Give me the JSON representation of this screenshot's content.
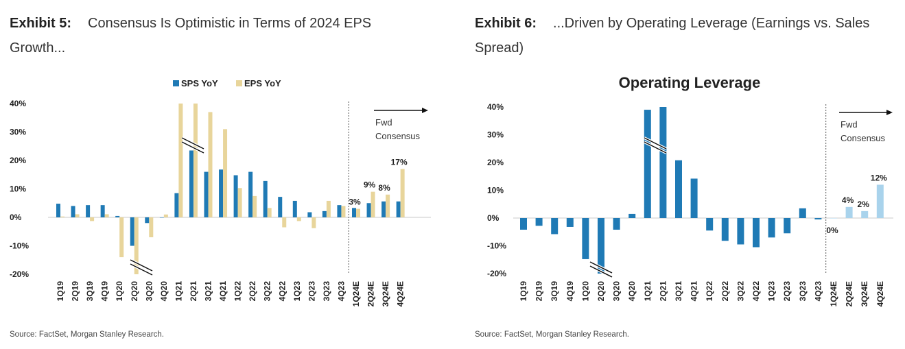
{
  "exhibit5": {
    "label": "Exhibit 5:",
    "title": "Consensus Is Optimistic in Terms of 2024 EPS Growth...",
    "source": "Source: FactSet, Morgan Stanley Research."
  },
  "exhibit6": {
    "label": "Exhibit 6:",
    "title": "...Driven by Operating Leverage (Earnings vs. Sales Spread)",
    "source": "Source: FactSet, Morgan Stanley Research."
  },
  "colors": {
    "sps": "#1f7ab5",
    "eps": "#e8d59b",
    "forecast": "#a9d3ec"
  },
  "chart_data": [
    {
      "type": "bar",
      "title": "",
      "categories": [
        "1Q19",
        "2Q19",
        "3Q19",
        "4Q19",
        "1Q20",
        "2Q20",
        "3Q20",
        "4Q20",
        "1Q21",
        "2Q21",
        "3Q21",
        "4Q21",
        "1Q22",
        "2Q22",
        "3Q22",
        "4Q22",
        "1Q23",
        "2Q23",
        "3Q23",
        "4Q23",
        "1Q24E",
        "2Q24E",
        "3Q24E",
        "4Q24E"
      ],
      "series": [
        {
          "name": "SPS YoY",
          "values": [
            4.8,
            4.0,
            4.3,
            4.3,
            0.5,
            -10.0,
            -2.0,
            0.0,
            8.5,
            23.5,
            16.0,
            16.8,
            14.8,
            16.0,
            12.8,
            7.2,
            5.8,
            1.8,
            2.2,
            4.3,
            3.3,
            5.0,
            5.6,
            5.6
          ]
        },
        {
          "name": "EPS YoY",
          "values": [
            0.3,
            1.1,
            -1.3,
            1.1,
            -14.0,
            -20.0,
            -7.0,
            1.0,
            40.0,
            40.0,
            37.0,
            31.0,
            10.3,
            7.5,
            3.3,
            -3.5,
            -1.3,
            -3.8,
            5.8,
            4.0,
            3.0,
            9.0,
            8.0,
            17.0
          ]
        }
      ],
      "data_labels": {
        "1Q24E": "3%",
        "2Q24E": "9%",
        "3Q24E": "8%",
        "4Q24E": "17%"
      },
      "yticks": [
        "40%",
        "30%",
        "20%",
        "10%",
        "0%",
        "-10%",
        "-20%"
      ],
      "ylim": [
        -20,
        40
      ],
      "forecast_start": "1Q24E",
      "annotation": [
        "Fwd",
        "Consensus"
      ],
      "legend_position": "top-center",
      "axis_break": true
    },
    {
      "type": "bar",
      "title": "Operating Leverage",
      "categories": [
        "1Q19",
        "2Q19",
        "3Q19",
        "4Q19",
        "1Q20",
        "2Q20",
        "3Q20",
        "4Q20",
        "1Q21",
        "2Q21",
        "3Q21",
        "4Q21",
        "1Q22",
        "2Q22",
        "3Q22",
        "4Q22",
        "1Q23",
        "2Q23",
        "3Q23",
        "4Q23",
        "1Q24E",
        "2Q24E",
        "3Q24E",
        "4Q24E"
      ],
      "series": [
        {
          "values": [
            -4.2,
            -2.8,
            -5.8,
            -3.2,
            -14.8,
            -20.0,
            -4.2,
            1.5,
            39.0,
            40.0,
            20.8,
            14.2,
            -4.5,
            -8.2,
            -9.5,
            -10.5,
            -7.0,
            -5.5,
            3.5,
            -0.5,
            0.0,
            4.0,
            2.5,
            12.0
          ]
        }
      ],
      "data_labels": {
        "1Q24E": "0%",
        "2Q24E": "4%",
        "3Q24E": "2%",
        "4Q24E": "12%"
      },
      "yticks": [
        "40%",
        "30%",
        "20%",
        "10%",
        "0%",
        "-10%",
        "-20%"
      ],
      "ylim": [
        -20,
        40
      ],
      "forecast_start": "1Q24E",
      "annotation": [
        "Fwd",
        "Consensus"
      ],
      "axis_break": true
    }
  ]
}
